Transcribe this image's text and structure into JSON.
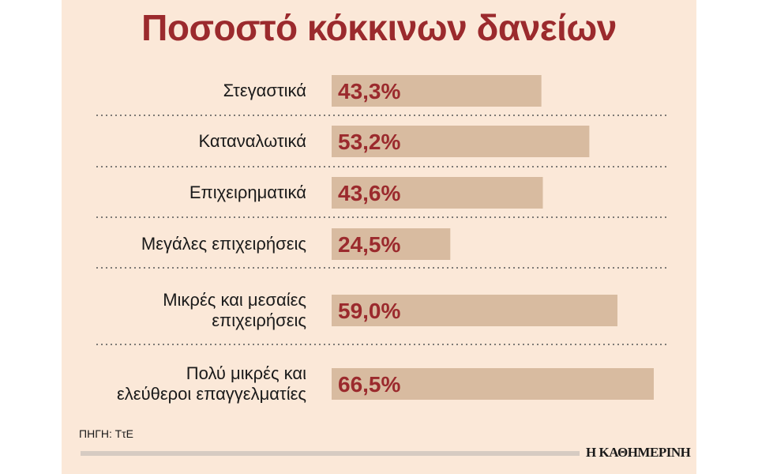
{
  "chart_data": {
    "type": "bar",
    "orientation": "horizontal",
    "title": "Ποσοστό κόκκινων δανείων",
    "categories": [
      [
        "Στεγαστικά"
      ],
      [
        "Καταναλωτικά"
      ],
      [
        "Επιχειρηματικά"
      ],
      [
        "Μεγάλες επιχειρήσεις"
      ],
      [
        "Μικρές και μεσαίες",
        "επιχειρήσεις"
      ],
      [
        "Πολύ μικρές και",
        "ελεύθεροι επαγγελματίες"
      ]
    ],
    "values": [
      43.3,
      53.2,
      43.6,
      24.5,
      59.0,
      66.5
    ],
    "value_labels": [
      "43,3%",
      "53,2%",
      "43,6%",
      "24,5%",
      "59,0%",
      "66,5%"
    ],
    "xlim": [
      0,
      66.5
    ],
    "grid": false,
    "separators": "dotted"
  },
  "source": "ΠΗΓΗ: ΤτΕ",
  "brand": "Η ΚΑΘΗΜΕΡΙΝΗ",
  "colors": {
    "background": "#fbe8d8",
    "bar": "#d8bba0",
    "title": "#9b2a2d",
    "value_text": "#9b2a2d",
    "separator": "#555555",
    "footer_rule": "#d6cbc2"
  }
}
